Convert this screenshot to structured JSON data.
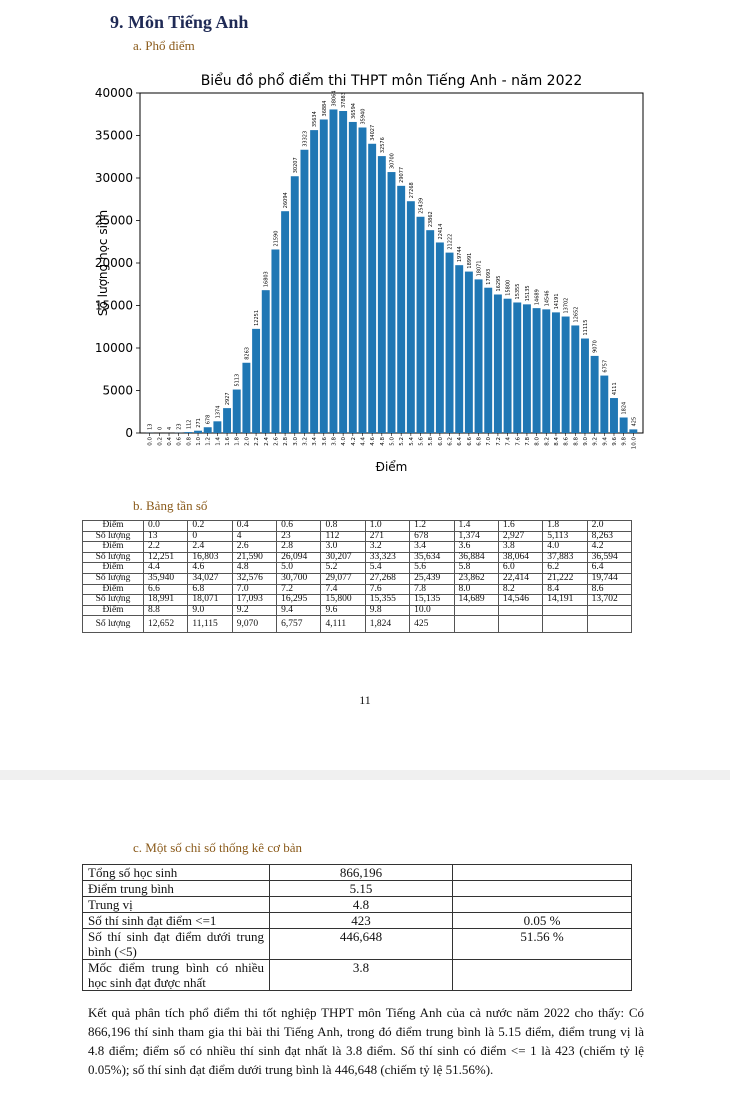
{
  "section": {
    "title": "9. Môn Tiếng Anh"
  },
  "sub_a": "a. Phổ điểm",
  "sub_b": "b. Bảng tần số",
  "sub_c": "c. Một số chỉ số thống kê cơ bản",
  "page_number": "11",
  "colors": {
    "bar": "#1f77b4"
  },
  "chart_data": {
    "type": "bar",
    "title": "Biểu đồ phổ điểm thi THPT môn Tiếng Anh - năm 2022",
    "xlabel": "Điểm",
    "ylabel": "Số lượng học sinh",
    "ylim": [
      0,
      40000
    ],
    "yticks": [
      "0",
      "5000",
      "10000",
      "15000",
      "20000",
      "25000",
      "30000",
      "35000",
      "40000"
    ],
    "categories": [
      "0.0",
      "0.2",
      "0.4",
      "0.6",
      "0.8",
      "1.0",
      "1.2",
      "1.4",
      "1.6",
      "1.8",
      "2.0",
      "2.2",
      "2.4",
      "2.6",
      "2.8",
      "3.0",
      "3.2",
      "3.4",
      "3.6",
      "3.8",
      "4.0",
      "4.2",
      "4.4",
      "4.6",
      "4.8",
      "5.0",
      "5.2",
      "5.4",
      "5.6",
      "5.8",
      "6.0",
      "6.2",
      "6.4",
      "6.6",
      "6.8",
      "7.0",
      "7.2",
      "7.4",
      "7.6",
      "7.8",
      "8.0",
      "8.2",
      "8.4",
      "8.6",
      "8.8",
      "9.0",
      "9.2",
      "9.4",
      "9.6",
      "9.8",
      "10.0"
    ],
    "values": [
      13,
      0,
      4,
      23,
      112,
      271,
      678,
      1374,
      2927,
      5113,
      8263,
      12251,
      16803,
      21590,
      26094,
      30207,
      33323,
      35634,
      36884,
      38064,
      37883,
      36594,
      35940,
      34027,
      32576,
      30700,
      29077,
      27268,
      25439,
      23862,
      22414,
      21222,
      19744,
      18991,
      18071,
      17093,
      16295,
      15800,
      15355,
      15135,
      14689,
      14546,
      14191,
      13702,
      12652,
      11115,
      9070,
      6757,
      4111,
      1824,
      425
    ]
  },
  "freq_table": {
    "row_label_score": "Điểm",
    "row_label_count": "Số lượng",
    "blocks": [
      {
        "scores": [
          "0.0",
          "0.2",
          "0.4",
          "0.6",
          "0.8",
          "1.0",
          "1.2",
          "1.4",
          "1.6",
          "1.8",
          "2.0"
        ],
        "counts": [
          "13",
          "0",
          "4",
          "23",
          "112",
          "271",
          "678",
          "1,374",
          "2,927",
          "5,113",
          "8,263"
        ]
      },
      {
        "scores": [
          "2.2",
          "2.4",
          "2.6",
          "2.8",
          "3.0",
          "3.2",
          "3.4",
          "3.6",
          "3.8",
          "4.0",
          "4.2"
        ],
        "counts": [
          "12,251",
          "16,803",
          "21,590",
          "26,094",
          "30,207",
          "33,323",
          "35,634",
          "36,884",
          "38,064",
          "37,883",
          "36,594"
        ]
      },
      {
        "scores": [
          "4.4",
          "4.6",
          "4.8",
          "5.0",
          "5.2",
          "5.4",
          "5.6",
          "5.8",
          "6.0",
          "6.2",
          "6.4"
        ],
        "counts": [
          "35,940",
          "34,027",
          "32,576",
          "30,700",
          "29,077",
          "27,268",
          "25,439",
          "23,862",
          "22,414",
          "21,222",
          "19,744"
        ]
      },
      {
        "scores": [
          "6.6",
          "6.8",
          "7.0",
          "7.2",
          "7.4",
          "7.6",
          "7.8",
          "8.0",
          "8.2",
          "8.4",
          "8.6"
        ],
        "counts": [
          "18,991",
          "18,071",
          "17,093",
          "16,295",
          "15,800",
          "15,355",
          "15,135",
          "14,689",
          "14,546",
          "14,191",
          "13,702"
        ]
      },
      {
        "scores": [
          "8.8",
          "9.0",
          "9.2",
          "9.4",
          "9.6",
          "9.8",
          "10.0",
          "",
          "",
          "",
          ""
        ],
        "counts": [
          "12,652",
          "11,115",
          "9,070",
          "6,757",
          "4,111",
          "1,824",
          "425",
          "",
          "",
          "",
          ""
        ]
      }
    ]
  },
  "stats_table": {
    "rows": [
      {
        "label": "Tổng số học sinh",
        "value": "866,196",
        "pct": ""
      },
      {
        "label": "Điểm trung bình",
        "value": "5.15",
        "pct": ""
      },
      {
        "label": "Trung vị",
        "value": "4.8",
        "pct": ""
      },
      {
        "label": "Số thí sinh đạt điểm <=1",
        "value": "423",
        "pct": "0.05 %"
      },
      {
        "label": "Số thí sinh đạt điểm dưới trung bình (<5)",
        "value": "446,648",
        "pct": "51.56 %"
      },
      {
        "label": "Mốc điểm trung bình có nhiều học sinh đạt được nhất",
        "value": "3.8",
        "pct": ""
      }
    ]
  },
  "paragraph": "Kết quả phân tích phổ điểm thi tốt nghiệp THPT môn Tiếng Anh của cả nước năm 2022 cho thấy: Có 866,196 thí sinh tham gia thi bài thi Tiếng Anh, trong đó điểm trung bình là 5.15 điểm, điểm trung vị là 4.8 điểm; điểm số có nhiều thí sinh đạt nhất là 3.8 điểm. Số thí sinh có điểm <= 1 là 423 (chiếm tỷ lệ 0.05%); số thí sinh đạt điểm dưới trung bình là 446,648 (chiếm tỷ lệ 51.56%)."
}
